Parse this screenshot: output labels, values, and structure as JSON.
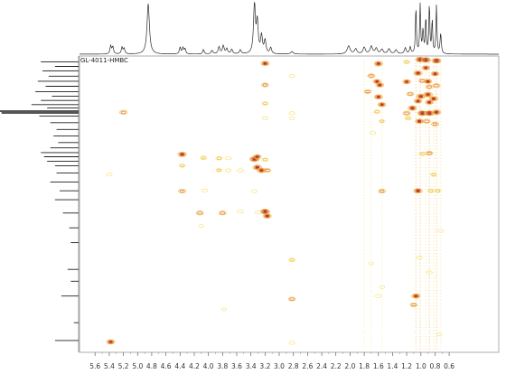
{
  "chart_data": {
    "type": "heatmap",
    "title": "GL-4011-HMBC",
    "xlabel": "",
    "ylabel": "",
    "x_axis": {
      "direction": "descending",
      "range": [
        5.82,
        -0.1
      ],
      "ticks": [
        5.6,
        5.4,
        5.2,
        5.0,
        4.8,
        4.6,
        4.4,
        4.2,
        4.0,
        3.8,
        3.6,
        3.4,
        3.2,
        3.0,
        2.8,
        2.6,
        2.4,
        2.2,
        2.0,
        1.8,
        1.6,
        1.4,
        1.2,
        1.0,
        0.8,
        0.6
      ],
      "tick_labels": [
        "5.6",
        "5.4",
        "5.2",
        "5.0",
        "4.8",
        "4.6",
        "4.4",
        "4.2",
        "4.0",
        "3.8",
        "3.6",
        "3.4",
        "3.2",
        "3.0",
        "2.8",
        "2.6",
        "2.4",
        "2.2",
        "2.0",
        "1.8",
        "1.6",
        "1.4",
        "1.2",
        "1.0",
        "0.8",
        "0.6"
      ],
      "unit": "ppm (1H)"
    },
    "y_axis": {
      "range": [
        0,
        100
      ],
      "tick_labels": [],
      "unit": "relative (13C, unlabeled)"
    },
    "grid": false,
    "colormap": [
      "#f6e27a",
      "#f2b84a",
      "#e4782d",
      "#b93a1e"
    ],
    "top_projection": [
      {
        "x": 5.38,
        "height": 0.16,
        "width": 0.012
      },
      {
        "x": 5.35,
        "height": 0.14,
        "width": 0.012
      },
      {
        "x": 5.22,
        "height": 0.13,
        "width": 0.012
      },
      {
        "x": 5.19,
        "height": 0.11,
        "width": 0.012
      },
      {
        "x": 4.85,
        "height": 1.0,
        "width": 0.02
      },
      {
        "x": 4.4,
        "height": 0.13,
        "width": 0.012
      },
      {
        "x": 4.36,
        "height": 0.12,
        "width": 0.012
      },
      {
        "x": 4.33,
        "height": 0.1,
        "width": 0.012
      },
      {
        "x": 4.07,
        "height": 0.09,
        "width": 0.012
      },
      {
        "x": 3.95,
        "height": 0.07,
        "width": 0.015
      },
      {
        "x": 3.85,
        "height": 0.14,
        "width": 0.015
      },
      {
        "x": 3.79,
        "height": 0.16,
        "width": 0.015
      },
      {
        "x": 3.74,
        "height": 0.1,
        "width": 0.015
      },
      {
        "x": 3.67,
        "height": 0.09,
        "width": 0.015
      },
      {
        "x": 3.55,
        "height": 0.08,
        "width": 0.015
      },
      {
        "x": 3.35,
        "height": 1.0,
        "width": 0.015
      },
      {
        "x": 3.31,
        "height": 0.62,
        "width": 0.015
      },
      {
        "x": 3.25,
        "height": 0.35,
        "width": 0.015
      },
      {
        "x": 3.2,
        "height": 0.26,
        "width": 0.015
      },
      {
        "x": 3.12,
        "height": 0.12,
        "width": 0.015
      },
      {
        "x": 2.82,
        "height": 0.05,
        "width": 0.02
      },
      {
        "x": 2.02,
        "height": 0.16,
        "width": 0.025
      },
      {
        "x": 1.92,
        "height": 0.1,
        "width": 0.02
      },
      {
        "x": 1.8,
        "height": 0.13,
        "width": 0.02
      },
      {
        "x": 1.7,
        "height": 0.15,
        "width": 0.02
      },
      {
        "x": 1.63,
        "height": 0.11,
        "width": 0.02
      },
      {
        "x": 1.55,
        "height": 0.09,
        "width": 0.02
      },
      {
        "x": 1.45,
        "height": 0.1,
        "width": 0.02
      },
      {
        "x": 1.35,
        "height": 0.08,
        "width": 0.02
      },
      {
        "x": 1.22,
        "height": 0.12,
        "width": 0.015
      },
      {
        "x": 1.15,
        "height": 0.13,
        "width": 0.012
      },
      {
        "x": 1.07,
        "height": 0.92,
        "width": 0.008
      },
      {
        "x": 1.01,
        "height": 0.96,
        "width": 0.008
      },
      {
        "x": 0.97,
        "height": 0.45,
        "width": 0.01
      },
      {
        "x": 0.93,
        "height": 0.7,
        "width": 0.008
      },
      {
        "x": 0.88,
        "height": 0.97,
        "width": 0.008
      },
      {
        "x": 0.84,
        "height": 0.66,
        "width": 0.008
      },
      {
        "x": 0.78,
        "height": 0.95,
        "width": 0.008
      },
      {
        "x": 0.72,
        "height": 0.4,
        "width": 0.01
      }
    ],
    "left_projection": [
      {
        "y": 2.0,
        "len": 0.48
      },
      {
        "y": 3.5,
        "len": 0.3
      },
      {
        "y": 5.0,
        "len": 0.46
      },
      {
        "y": 6.8,
        "len": 0.38
      },
      {
        "y": 8.5,
        "len": 0.52
      },
      {
        "y": 10.2,
        "len": 0.42
      },
      {
        "y": 12.0,
        "len": 0.55
      },
      {
        "y": 13.6,
        "len": 0.34
      },
      {
        "y": 15.0,
        "len": 0.48
      },
      {
        "y": 16.4,
        "len": 0.6
      },
      {
        "y": 17.5,
        "len": 0.4
      },
      {
        "y": 18.6,
        "len": 1.0
      },
      {
        "y": 19.2,
        "len": 0.98
      },
      {
        "y": 20.3,
        "len": 0.5
      },
      {
        "y": 22.5,
        "len": 0.36
      },
      {
        "y": 24.8,
        "len": 0.28
      },
      {
        "y": 27.0,
        "len": 0.32
      },
      {
        "y": 29.2,
        "len": 0.26
      },
      {
        "y": 31.0,
        "len": 0.36
      },
      {
        "y": 32.6,
        "len": 0.48
      },
      {
        "y": 34.0,
        "len": 0.44
      },
      {
        "y": 35.5,
        "len": 0.4
      },
      {
        "y": 37.0,
        "len": 0.3
      },
      {
        "y": 39.5,
        "len": 0.28
      },
      {
        "y": 42.5,
        "len": 0.36
      },
      {
        "y": 45.5,
        "len": 0.24
      },
      {
        "y": 48.5,
        "len": 0.3
      },
      {
        "y": 53.0,
        "len": 0.2
      },
      {
        "y": 58.0,
        "len": 0.12
      },
      {
        "y": 63.0,
        "len": 0.1
      },
      {
        "y": 72.0,
        "len": 0.14
      },
      {
        "y": 76.0,
        "len": 0.1
      },
      {
        "y": 81.0,
        "len": 0.22
      },
      {
        "y": 90.0,
        "len": 0.06
      },
      {
        "y": 96.0,
        "len": 0.3
      }
    ],
    "cross_peaks": [
      {
        "x": 3.2,
        "y": 2.5,
        "i": 0.75
      },
      {
        "x": 2.82,
        "y": 6.8,
        "i": 0.3
      },
      {
        "x": 3.2,
        "y": 9.8,
        "i": 0.55
      },
      {
        "x": 3.2,
        "y": 16.0,
        "i": 0.4
      },
      {
        "x": 3.2,
        "y": 21.0,
        "i": 0.3
      },
      {
        "x": 2.82,
        "y": 19.3,
        "i": 0.3
      },
      {
        "x": 2.82,
        "y": 21.0,
        "i": 0.25
      },
      {
        "x": 5.2,
        "y": 19.0,
        "i": 0.6
      },
      {
        "x": 5.4,
        "y": 40.0,
        "i": 0.3
      },
      {
        "x": 4.37,
        "y": 33.2,
        "i": 0.85
      },
      {
        "x": 4.37,
        "y": 37.0,
        "i": 0.4
      },
      {
        "x": 4.37,
        "y": 45.6,
        "i": 0.6
      },
      {
        "x": 4.07,
        "y": 34.4,
        "i": 0.45
      },
      {
        "x": 4.05,
        "y": 45.4,
        "i": 0.35
      },
      {
        "x": 3.85,
        "y": 34.5,
        "i": 0.45
      },
      {
        "x": 3.85,
        "y": 38.5,
        "i": 0.4
      },
      {
        "x": 3.8,
        "y": 53.0,
        "i": 0.6
      },
      {
        "x": 3.72,
        "y": 34.5,
        "i": 0.35
      },
      {
        "x": 3.72,
        "y": 38.6,
        "i": 0.35
      },
      {
        "x": 3.55,
        "y": 38.6,
        "i": 0.35
      },
      {
        "x": 3.35,
        "y": 34.8,
        "i": 0.9
      },
      {
        "x": 3.31,
        "y": 34.0,
        "i": 0.7
      },
      {
        "x": 3.31,
        "y": 37.6,
        "i": 0.85
      },
      {
        "x": 3.25,
        "y": 38.6,
        "i": 0.8
      },
      {
        "x": 3.2,
        "y": 35.0,
        "i": 0.5
      },
      {
        "x": 3.17,
        "y": 38.6,
        "i": 0.6
      },
      {
        "x": 3.35,
        "y": 45.6,
        "i": 0.3
      },
      {
        "x": 3.2,
        "y": 52.5,
        "i": 0.9
      },
      {
        "x": 3.17,
        "y": 54.0,
        "i": 0.75
      },
      {
        "x": 3.3,
        "y": 52.8,
        "i": 0.3
      },
      {
        "x": 4.12,
        "y": 53.0,
        "i": 0.6
      },
      {
        "x": 3.55,
        "y": 52.5,
        "i": 0.35
      },
      {
        "x": 4.1,
        "y": 57.4,
        "i": 0.25
      },
      {
        "x": 3.78,
        "y": 85.5,
        "i": 0.2
      },
      {
        "x": 2.82,
        "y": 68.8,
        "i": 0.45
      },
      {
        "x": 2.82,
        "y": 82.0,
        "i": 0.55
      },
      {
        "x": 5.38,
        "y": 96.5,
        "i": 0.75
      },
      {
        "x": 2.82,
        "y": 96.8,
        "i": 0.35
      },
      {
        "x": 1.6,
        "y": 2.6,
        "i": 0.8
      },
      {
        "x": 1.7,
        "y": 6.7,
        "i": 0.6
      },
      {
        "x": 1.62,
        "y": 8.6,
        "i": 0.65
      },
      {
        "x": 1.58,
        "y": 9.8,
        "i": 0.7
      },
      {
        "x": 1.75,
        "y": 12.0,
        "i": 0.55
      },
      {
        "x": 1.6,
        "y": 13.8,
        "i": 0.75
      },
      {
        "x": 1.55,
        "y": 16.4,
        "i": 0.7
      },
      {
        "x": 1.62,
        "y": 18.8,
        "i": 0.5
      },
      {
        "x": 1.55,
        "y": 22.0,
        "i": 0.4
      },
      {
        "x": 1.68,
        "y": 26.0,
        "i": 0.35
      },
      {
        "x": 1.55,
        "y": 45.6,
        "i": 0.55
      },
      {
        "x": 1.7,
        "y": 70.0,
        "i": 0.2
      },
      {
        "x": 1.55,
        "y": 78.0,
        "i": 0.25
      },
      {
        "x": 1.6,
        "y": 81.0,
        "i": 0.3
      },
      {
        "x": 1.2,
        "y": 2.0,
        "i": 0.45
      },
      {
        "x": 1.2,
        "y": 8.7,
        "i": 0.7
      },
      {
        "x": 1.15,
        "y": 12.8,
        "i": 0.55
      },
      {
        "x": 1.12,
        "y": 17.6,
        "i": 0.85
      },
      {
        "x": 1.2,
        "y": 19.3,
        "i": 0.6
      },
      {
        "x": 1.18,
        "y": 21.0,
        "i": 0.5
      },
      {
        "x": 1.07,
        "y": 81.0,
        "i": 0.8
      },
      {
        "x": 1.1,
        "y": 84.0,
        "i": 0.55
      },
      {
        "x": 1.01,
        "y": 1.2,
        "i": 0.9
      },
      {
        "x": 1.04,
        "y": 5.8,
        "i": 0.8
      },
      {
        "x": 0.98,
        "y": 8.4,
        "i": 0.6
      },
      {
        "x": 1.0,
        "y": 13.6,
        "i": 0.85
      },
      {
        "x": 1.04,
        "y": 15.2,
        "i": 0.65
      },
      {
        "x": 0.98,
        "y": 19.3,
        "i": 0.9
      },
      {
        "x": 1.02,
        "y": 22.0,
        "i": 0.75
      },
      {
        "x": 0.98,
        "y": 33.0,
        "i": 0.5
      },
      {
        "x": 1.04,
        "y": 45.5,
        "i": 0.85
      },
      {
        "x": 1.02,
        "y": 68.0,
        "i": 0.35
      },
      {
        "x": 0.93,
        "y": 1.3,
        "i": 0.95
      },
      {
        "x": 0.93,
        "y": 4.0,
        "i": 0.7
      },
      {
        "x": 0.9,
        "y": 8.6,
        "i": 0.65
      },
      {
        "x": 0.88,
        "y": 10.4,
        "i": 0.6
      },
      {
        "x": 0.9,
        "y": 13.0,
        "i": 0.85
      },
      {
        "x": 0.88,
        "y": 15.6,
        "i": 0.7
      },
      {
        "x": 0.88,
        "y": 19.3,
        "i": 0.9
      },
      {
        "x": 0.92,
        "y": 22.0,
        "i": 0.6
      },
      {
        "x": 0.88,
        "y": 32.8,
        "i": 0.55
      },
      {
        "x": 0.82,
        "y": 40.0,
        "i": 0.45
      },
      {
        "x": 0.86,
        "y": 45.5,
        "i": 0.5
      },
      {
        "x": 0.88,
        "y": 73.0,
        "i": 0.3
      },
      {
        "x": 0.78,
        "y": 1.6,
        "i": 0.9
      },
      {
        "x": 0.8,
        "y": 6.0,
        "i": 0.7
      },
      {
        "x": 0.78,
        "y": 10.0,
        "i": 0.6
      },
      {
        "x": 0.82,
        "y": 14.4,
        "i": 0.8
      },
      {
        "x": 0.78,
        "y": 19.0,
        "i": 0.85
      },
      {
        "x": 0.8,
        "y": 23.0,
        "i": 0.6
      },
      {
        "x": 0.76,
        "y": 45.5,
        "i": 0.5
      },
      {
        "x": 0.72,
        "y": 59.0,
        "i": 0.3
      },
      {
        "x": 0.74,
        "y": 94.0,
        "i": 0.25
      }
    ],
    "vertical_streaks": [
      {
        "x": 1.8,
        "intensity": 0.35
      },
      {
        "x": 1.7,
        "intensity": 0.3
      },
      {
        "x": 1.55,
        "intensity": 0.25
      },
      {
        "x": 1.07,
        "intensity": 0.5
      },
      {
        "x": 1.01,
        "intensity": 0.55
      },
      {
        "x": 0.93,
        "intensity": 0.45
      },
      {
        "x": 0.88,
        "intensity": 0.55
      },
      {
        "x": 0.82,
        "intensity": 0.4
      },
      {
        "x": 0.78,
        "intensity": 0.5
      },
      {
        "x": 0.72,
        "intensity": 0.3
      }
    ]
  }
}
